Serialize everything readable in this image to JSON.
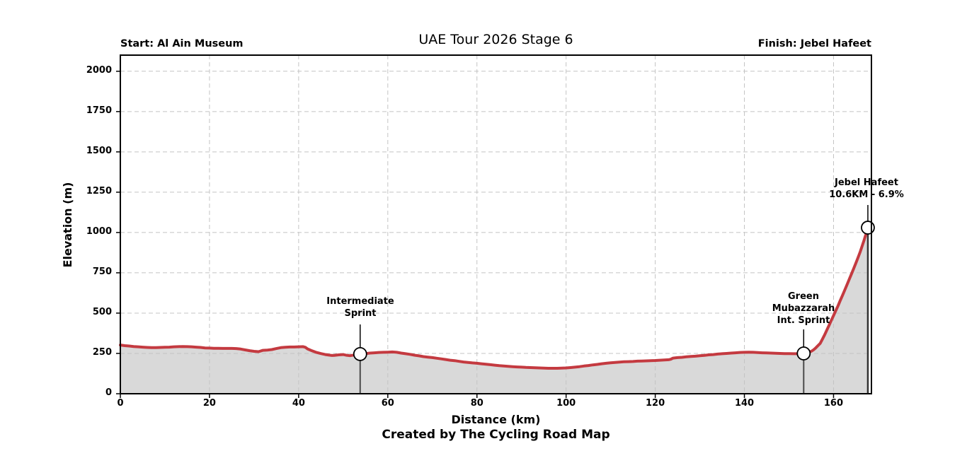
{
  "header": {
    "title": "UAE Tour 2026 Stage 6",
    "start_label": "Start: Al Ain Museum",
    "finish_label": "Finish: Jebel Hafeet"
  },
  "footer": {
    "credit": "Created by The Cycling Road Map"
  },
  "chart_data": {
    "type": "area",
    "title": "UAE Tour 2026 Stage 6",
    "xlabel": "Distance (km)",
    "ylabel": "Elevation (m)",
    "xlim": [
      0,
      168.5
    ],
    "ylim": [
      0,
      2100
    ],
    "x_ticks": [
      0,
      20,
      40,
      60,
      80,
      100,
      120,
      140,
      160
    ],
    "y_ticks": [
      0,
      250,
      500,
      750,
      1000,
      1250,
      1500,
      1750,
      2000
    ],
    "grid": true,
    "legend": "none",
    "line_color": "#c43a40",
    "fill_color": "#d9d9d9",
    "grid_color": "#c4c4c4",
    "marker_line_color": "#4a4a4a",
    "points": [
      [
        0,
        302
      ],
      [
        1,
        298
      ],
      [
        2,
        296
      ],
      [
        3,
        293
      ],
      [
        4,
        291
      ],
      [
        5,
        289
      ],
      [
        6,
        287
      ],
      [
        7,
        286
      ],
      [
        8,
        286
      ],
      [
        9,
        287
      ],
      [
        10,
        288
      ],
      [
        11,
        289
      ],
      [
        12,
        291
      ],
      [
        13,
        292
      ],
      [
        14,
        293
      ],
      [
        15,
        292
      ],
      [
        16,
        291
      ],
      [
        17,
        289
      ],
      [
        18,
        287
      ],
      [
        19,
        284
      ],
      [
        20,
        283
      ],
      [
        21,
        282
      ],
      [
        22,
        282
      ],
      [
        23,
        281
      ],
      [
        24,
        281
      ],
      [
        25,
        281
      ],
      [
        26,
        280
      ],
      [
        27,
        277
      ],
      [
        28,
        272
      ],
      [
        29,
        267
      ],
      [
        30,
        263
      ],
      [
        31,
        261
      ],
      [
        32,
        269
      ],
      [
        33,
        271
      ],
      [
        34,
        274
      ],
      [
        35,
        280
      ],
      [
        36,
        286
      ],
      [
        37,
        288
      ],
      [
        38,
        290
      ],
      [
        39,
        290
      ],
      [
        40,
        291
      ],
      [
        41,
        292
      ],
      [
        41.5,
        288
      ],
      [
        42,
        278
      ],
      [
        43,
        266
      ],
      [
        44,
        256
      ],
      [
        45,
        249
      ],
      [
        46,
        243
      ],
      [
        47,
        239
      ],
      [
        47.5,
        237
      ],
      [
        48,
        238
      ],
      [
        49,
        241
      ],
      [
        50,
        243
      ],
      [
        50.8,
        238
      ],
      [
        51.5,
        236
      ],
      [
        52,
        238
      ],
      [
        53,
        242
      ],
      [
        53.8,
        246
      ],
      [
        55,
        249
      ],
      [
        56,
        252
      ],
      [
        57,
        254
      ],
      [
        58,
        256
      ],
      [
        59,
        257
      ],
      [
        60,
        258
      ],
      [
        61,
        259
      ],
      [
        62,
        257
      ],
      [
        63,
        252
      ],
      [
        64,
        248
      ],
      [
        65,
        244
      ],
      [
        66,
        239
      ],
      [
        67,
        235
      ],
      [
        68,
        230
      ],
      [
        69,
        227
      ],
      [
        70,
        224
      ],
      [
        71,
        220
      ],
      [
        72,
        216
      ],
      [
        73,
        212
      ],
      [
        74,
        208
      ],
      [
        75,
        205
      ],
      [
        76,
        201
      ],
      [
        77,
        197
      ],
      [
        78,
        194
      ],
      [
        79,
        191
      ],
      [
        80,
        189
      ],
      [
        81,
        186
      ],
      [
        82,
        183
      ],
      [
        83,
        180
      ],
      [
        84,
        177
      ],
      [
        85,
        174
      ],
      [
        86,
        172
      ],
      [
        87,
        170
      ],
      [
        88,
        168
      ],
      [
        89,
        166
      ],
      [
        90,
        165
      ],
      [
        91,
        163
      ],
      [
        92,
        162
      ],
      [
        93,
        161
      ],
      [
        94,
        160
      ],
      [
        95,
        159
      ],
      [
        96,
        158
      ],
      [
        97,
        158
      ],
      [
        98,
        158
      ],
      [
        99,
        159
      ],
      [
        100,
        160
      ],
      [
        101,
        162
      ],
      [
        102,
        165
      ],
      [
        103,
        168
      ],
      [
        104,
        172
      ],
      [
        105,
        175
      ],
      [
        106,
        179
      ],
      [
        107,
        182
      ],
      [
        108,
        186
      ],
      [
        109,
        189
      ],
      [
        110,
        192
      ],
      [
        111,
        194
      ],
      [
        112,
        196
      ],
      [
        113,
        198
      ],
      [
        114,
        199
      ],
      [
        115,
        200
      ],
      [
        116,
        202
      ],
      [
        117,
        203
      ],
      [
        118,
        204
      ],
      [
        119,
        205
      ],
      [
        120,
        206
      ],
      [
        121,
        208
      ],
      [
        122,
        209
      ],
      [
        123,
        211
      ],
      [
        123.5,
        214
      ],
      [
        124,
        221
      ],
      [
        125,
        224
      ],
      [
        126,
        226
      ],
      [
        127,
        229
      ],
      [
        128,
        231
      ],
      [
        129,
        233
      ],
      [
        130,
        236
      ],
      [
        131,
        238
      ],
      [
        132,
        241
      ],
      [
        133,
        243
      ],
      [
        134,
        246
      ],
      [
        135,
        248
      ],
      [
        136,
        250
      ],
      [
        137,
        252
      ],
      [
        138,
        254
      ],
      [
        139,
        256
      ],
      [
        140,
        257
      ],
      [
        141,
        258
      ],
      [
        142,
        257
      ],
      [
        143,
        255
      ],
      [
        144,
        254
      ],
      [
        145,
        253
      ],
      [
        146,
        252
      ],
      [
        147,
        251
      ],
      [
        148,
        250
      ],
      [
        149,
        249
      ],
      [
        150,
        249
      ],
      [
        151,
        248
      ],
      [
        152,
        248
      ],
      [
        153,
        249
      ],
      [
        153.3,
        250
      ],
      [
        154,
        254
      ],
      [
        155,
        263
      ],
      [
        155.5,
        272
      ],
      [
        156,
        284
      ],
      [
        156.5,
        298
      ],
      [
        157,
        312
      ],
      [
        157.5,
        338
      ],
      [
        158,
        365
      ],
      [
        158.5,
        395
      ],
      [
        159,
        425
      ],
      [
        159.5,
        455
      ],
      [
        160,
        485
      ],
      [
        160.5,
        515
      ],
      [
        161,
        545
      ],
      [
        161.5,
        578
      ],
      [
        162,
        610
      ],
      [
        162.5,
        642
      ],
      [
        163,
        675
      ],
      [
        163.5,
        708
      ],
      [
        164,
        742
      ],
      [
        164.5,
        775
      ],
      [
        165,
        810
      ],
      [
        165.5,
        845
      ],
      [
        166,
        882
      ],
      [
        166.4,
        915
      ],
      [
        166.8,
        948
      ],
      [
        167.1,
        975
      ],
      [
        167.4,
        1000
      ],
      [
        167.7,
        1022
      ],
      [
        167.8,
        1030
      ]
    ],
    "markers": [
      {
        "name": "intermediate-sprint",
        "km": 53.8,
        "elevation": 246,
        "label": "Intermediate\nSprint"
      },
      {
        "name": "green-mubazzarah-int-sprint",
        "km": 153.3,
        "elevation": 250,
        "label": "Green\nMubazzarah\nInt. Sprint"
      },
      {
        "name": "jebel-hafeet-finish",
        "km": 167.7,
        "elevation": 1030,
        "label": "Jebel Hafeet\n10.6KM - 6.9%"
      }
    ]
  }
}
